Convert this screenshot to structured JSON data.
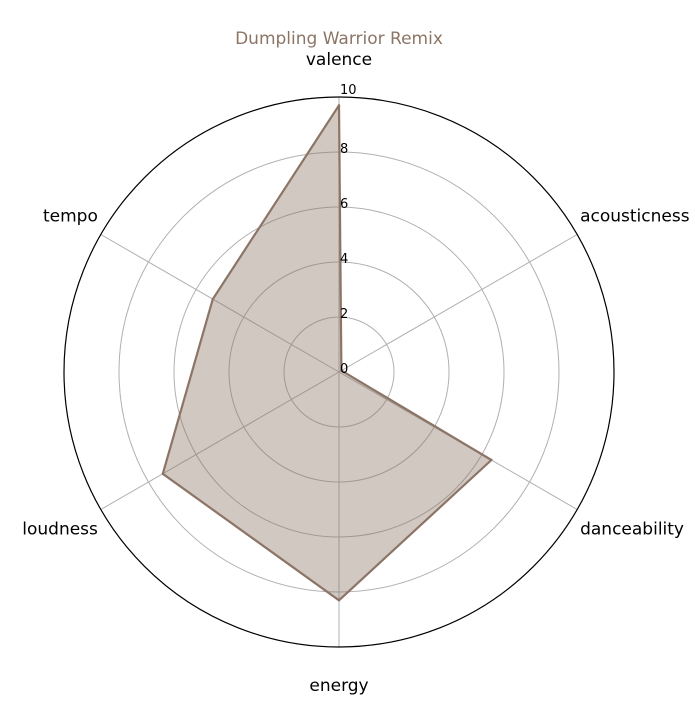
{
  "chart_data": {
    "type": "radar",
    "title": "Dumpling Warrior Remix",
    "axes": [
      "valence",
      "acousticness",
      "danceability",
      "energy",
      "loudness",
      "tempo"
    ],
    "rlim": [
      0,
      10
    ],
    "ticks": [
      "0",
      "2",
      "4",
      "6",
      "8",
      "10"
    ],
    "grid": true,
    "series": [
      {
        "values": [
          9.7,
          0.1,
          6.4,
          8.3,
          7.4,
          5.3
        ],
        "color": "#8c7566",
        "fill_opacity": 0.4
      }
    ]
  }
}
